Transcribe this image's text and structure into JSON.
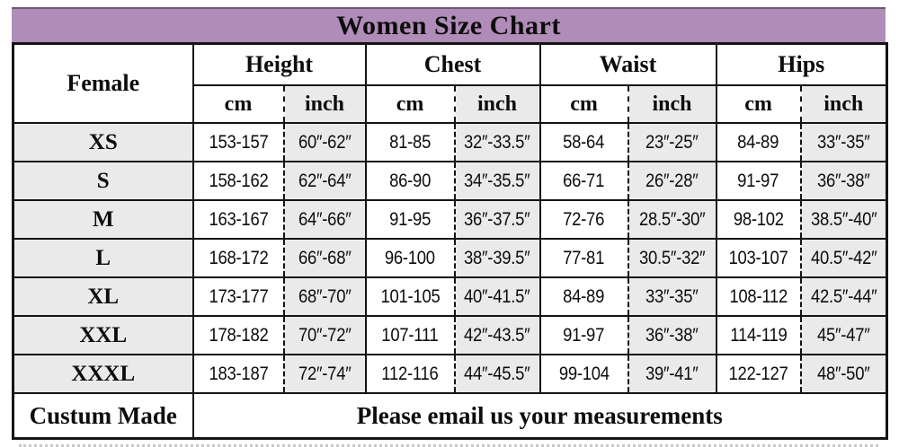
{
  "title": "Women Size Chart",
  "colors": {
    "title_bg": "#b08cb8",
    "shaded_cell": "#eaeaea",
    "border": "#141414"
  },
  "header": {
    "female_label": "Female",
    "groups": [
      "Height",
      "Chest",
      "Waist",
      "Hips"
    ],
    "unit_cm": "cm",
    "unit_inch": "inch"
  },
  "rows": [
    {
      "size": "XS",
      "height_cm": "153-157",
      "height_inch": "60″-62″",
      "chest_cm": "81-85",
      "chest_inch": "32″-33.5″",
      "waist_cm": "58-64",
      "waist_inch": "23″-25″",
      "hips_cm": "84-89",
      "hips_inch": "33″-35″"
    },
    {
      "size": "S",
      "height_cm": "158-162",
      "height_inch": "62″-64″",
      "chest_cm": "86-90",
      "chest_inch": "34″-35.5″",
      "waist_cm": "66-71",
      "waist_inch": "26″-28″",
      "hips_cm": "91-97",
      "hips_inch": "36″-38″"
    },
    {
      "size": "M",
      "height_cm": "163-167",
      "height_inch": "64″-66″",
      "chest_cm": "91-95",
      "chest_inch": "36″-37.5″",
      "waist_cm": "72-76",
      "waist_inch": "28.5″-30″",
      "hips_cm": "98-102",
      "hips_inch": "38.5″-40″"
    },
    {
      "size": "L",
      "height_cm": "168-172",
      "height_inch": "66″-68″",
      "chest_cm": "96-100",
      "chest_inch": "38″-39.5″",
      "waist_cm": "77-81",
      "waist_inch": "30.5″-32″",
      "hips_cm": "103-107",
      "hips_inch": "40.5″-42″"
    },
    {
      "size": "XL",
      "height_cm": "173-177",
      "height_inch": "68″-70″",
      "chest_cm": "101-105",
      "chest_inch": "40″-41.5″",
      "waist_cm": "84-89",
      "waist_inch": "33″-35″",
      "hips_cm": "108-112",
      "hips_inch": "42.5″-44″"
    },
    {
      "size": "XXL",
      "height_cm": "178-182",
      "height_inch": "70″-72″",
      "chest_cm": "107-111",
      "chest_inch": "42″-43.5″",
      "waist_cm": "91-97",
      "waist_inch": "36″-38″",
      "hips_cm": "114-119",
      "hips_inch": "45″-47″"
    },
    {
      "size": "XXXL",
      "height_cm": "183-187",
      "height_inch": "72″-74″",
      "chest_cm": "112-116",
      "chest_inch": "44″-45.5″",
      "waist_cm": "99-104",
      "waist_inch": "39″-41″",
      "hips_cm": "122-127",
      "hips_inch": "48″-50″"
    }
  ],
  "footer": {
    "label": "Custum Made",
    "message": "Please email us your measurements"
  }
}
